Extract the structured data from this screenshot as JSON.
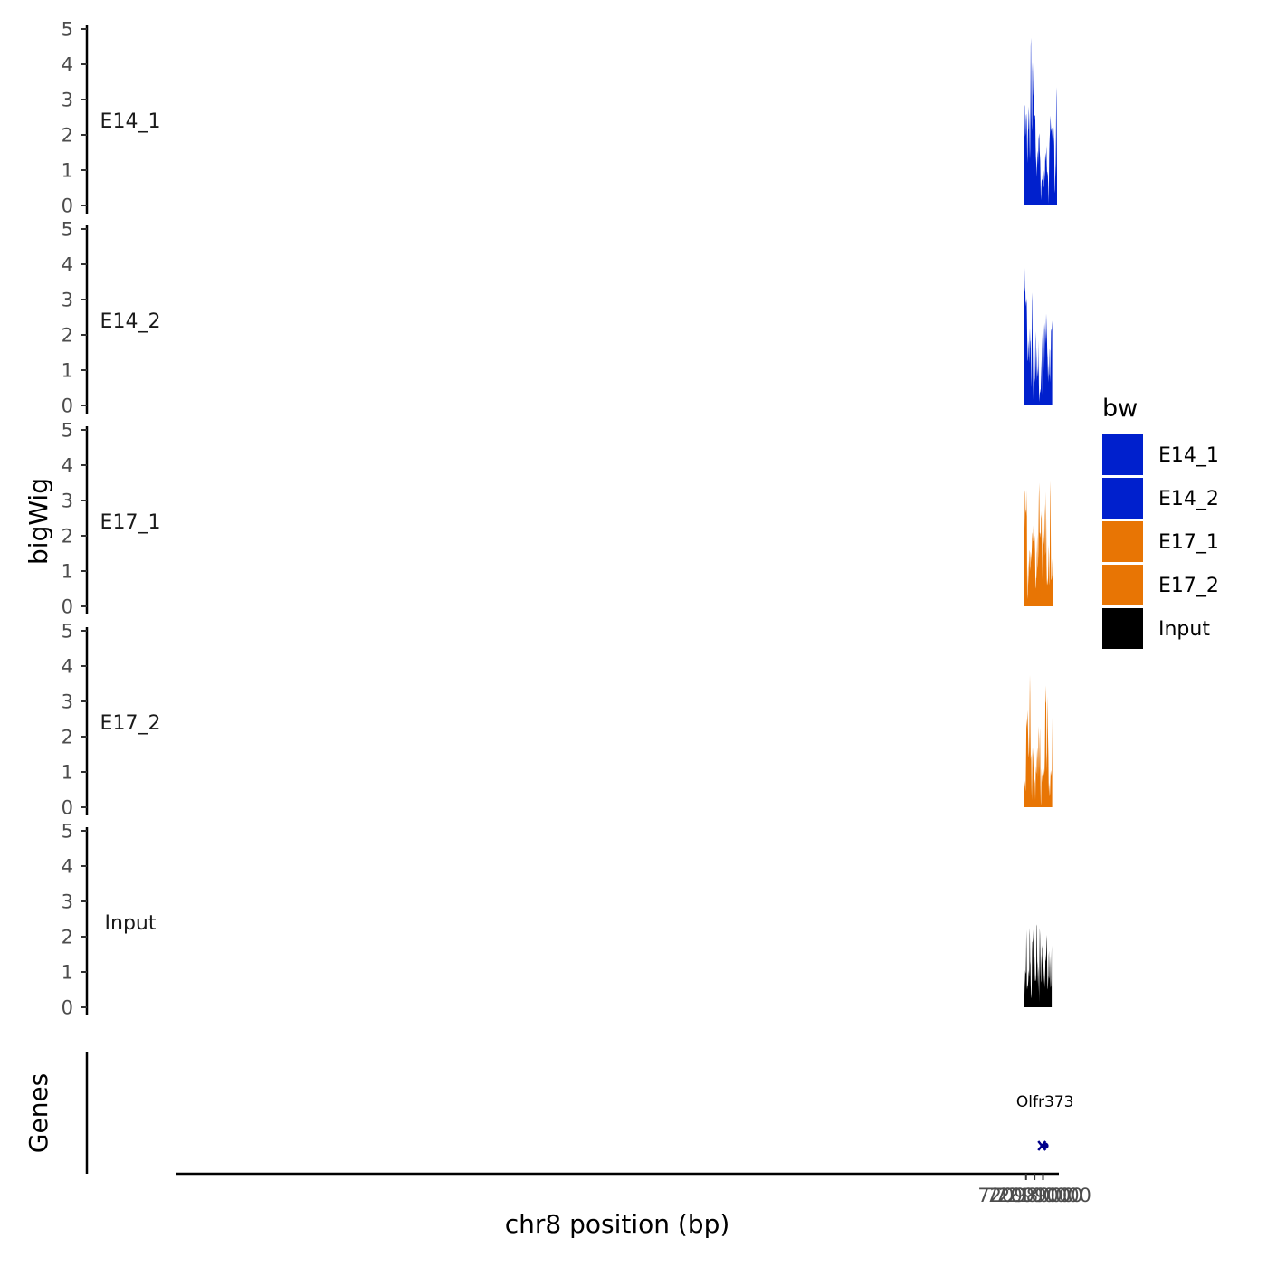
{
  "chart_data": {
    "type": "area",
    "chromosome": "chr8",
    "xlabel": "chr8 position (bp)",
    "ylabel": "bigWig",
    "xlim": [
      71997650,
      72101870
    ],
    "x_ticks": [
      {
        "value": 72098000,
        "label": "72098000"
      },
      {
        "value": 72099000,
        "label": "72099000"
      },
      {
        "value": 72100000,
        "label": "72100000"
      }
    ],
    "ylim": [
      0,
      5
    ],
    "y_ticks": [
      "0",
      "1",
      "2",
      "3",
      "4",
      "5"
    ],
    "legend": {
      "title": "bw",
      "entries": [
        {
          "label": "E14_1",
          "color": "#0020CD"
        },
        {
          "label": "E14_2",
          "color": "#0020CD"
        },
        {
          "label": "E17_1",
          "color": "#E87504"
        },
        {
          "label": "E17_2",
          "color": "#E87504"
        },
        {
          "label": "Input",
          "color": "#000000"
        }
      ]
    },
    "tracks": [
      {
        "name": "E14_1",
        "color": "#0020CD",
        "x_start": 72097780,
        "x_end": 72100700,
        "segments": [
          {
            "start": 72097780,
            "step": 32,
            "values": [
              2.5,
              2.85,
              2.8,
              2.3,
              1.95,
              2.05,
              2.35,
              2.55,
              2.6,
              2.45,
              2.15,
              1.45,
              1.2,
              1.7,
              2.1,
              2.2,
              2.45,
              2.8,
              2.55,
              2.2,
              1.7,
              1.3,
              1.6,
              2.9,
              4.5,
              4.75,
              3.6,
              2.6,
              2.1,
              2.3,
              3.8,
              4.05,
              3.7,
              3.35,
              3.1,
              3.3,
              3.15,
              2.6,
              2.55,
              2.55,
              2.55,
              2.4,
              1.75,
              1.4,
              1.25,
              1.05,
              0.8,
              1.1,
              1.45,
              1.55,
              1.35,
              1.15,
              1.45,
              1.85,
              1.95,
              2.05,
              1.9,
              1.55,
              1.4,
              1.25,
              0.8,
              0.3,
              0.15,
              0.45,
              0.65,
              0.75,
              0.7,
              0.75,
              0.95,
              1.25,
              1.05,
              0.55,
              0.5,
              0.85,
              1.0,
              0.85,
              0.7,
              1.25,
              1.5,
              1.4,
              1.25,
              1.5,
              1.7,
              1.2,
              0.95,
              0.95,
              0.9,
              0.85,
              0.65,
              0.3,
              0.05,
              0.7,
              1.4,
              1.75,
              1.95,
              2.1,
              2.35,
              2.55,
              2.3,
              2.15,
              2.1,
              2.2,
              2.2,
              2.05,
              1.95,
              1.55,
              1.4,
              1.45,
              1.8,
              1.95,
              2.25,
              1.3,
              0.45,
              0.35,
              0.7,
              0.95,
              1.2,
              1.95,
              3.05,
              3.35,
              2.2,
              0.9
            ]
          }
        ]
      },
      {
        "name": "E14_2",
        "color": "#0020CD",
        "x_start": 72097780,
        "x_end": 72100700,
        "segments": [
          {
            "start": 72097780,
            "step": 32,
            "values": [
              3.1,
              3.9,
              3.55,
              3.2,
              3.35,
              3.0,
              2.8,
              2.95,
              2.9,
              3.05,
              2.6,
              2.0,
              1.6,
              1.3,
              1.25,
              1.55,
              1.85,
              1.65,
              1.2,
              1.45,
              1.95,
              2.2,
              1.85,
              1.8,
              1.6,
              0.8,
              0.5,
              1.4,
              2.25,
              3.2,
              2.95,
              1.8,
              0.6,
              0.15,
              1.4,
              2.65,
              1.6,
              0.8,
              0.75,
              0.65,
              1.05,
              1.8,
              2.1,
              1.35,
              1.0,
              0.7,
              1.15,
              1.65,
              1.15,
              0.8,
              1.05,
              0.8,
              1.2,
              1.85,
              0.65,
              0.25,
              0.1,
              0.3,
              0.4,
              0.35,
              0.45,
              0.45,
              0.9,
              1.3,
              0.75,
              0.3,
              0.45,
              0.85,
              1.05,
              1.35,
              2.05,
              2.3,
              2.05,
              1.55,
              1.05,
              0.75,
              1.25,
              1.4,
              1.2,
              1.35,
              1.45,
              1.05,
              1.25,
              1.35,
              1.0,
              0.5,
              0.1
            ]
          },
          {
            "start": 72099860,
            "step": 32,
            "values": [
              1.3,
              2.05,
              1.65,
              0.7,
              0.45,
              0.6,
              0.55,
              0.4,
              0.5,
              1.0,
              1.65,
              2.05,
              2.35,
              2.05,
              1.75,
              2.2,
              2.6,
              2.35,
              2.05,
              1.85,
              1.5,
              1.35,
              1.0,
              0.65,
              0.85,
              1.2,
              0.85,
              0.9,
              1.35,
              1.6,
              1.55,
              0.85,
              0.65,
              1.55,
              2.1,
              2.15,
              2.15,
              2.3,
              2.4
            ]
          }
        ]
      },
      {
        "name": "E17_1",
        "color": "#E87504",
        "x_start": 72097780,
        "x_end": 72100690,
        "segments": [
          {
            "start": 72097780,
            "step": 32,
            "values": [
              2.7,
              2.2,
              2.6,
              3.2,
              3.3,
              2.8,
              2.65,
              2.75,
              2.55,
              3.3,
              2.6,
              0.35,
              0.2,
              0.55,
              1.0,
              1.3,
              0.9,
              0.6,
              1.1,
              1.6,
              1.55,
              1.15,
              1.0,
              1.35,
              1.55,
              1.45,
              1.25,
              1.45,
              1.65,
              1.9,
              2.05,
              2.1,
              1.85,
              1.85,
              2.3,
              1.85,
              1.65,
              1.95,
              2.0,
              1.85,
              1.55,
              0.9,
              0.5,
              0.55,
              0.8,
              0.8,
              1.05,
              1.55,
              2.05,
              1.65,
              0.95,
              0.8,
              1.3,
              1.5,
              1.7,
              1.45,
              1.55,
              1.5,
              0.85,
              0.2,
              0.05
            ]
          },
          {
            "start": 72099160,
            "step": 32,
            "values": [
              0.05,
              0.2,
              0.45,
              1.05,
              1.5,
              1.6,
              1.25,
              1.05,
              1.25,
              1.55,
              2.45,
              3.1,
              3.5,
              3.0,
              2.1,
              2.05,
              2.1,
              2.0,
              1.95,
              1.85,
              1.7,
              0.85,
              0.25
            ]
          },
          {
            "start": 72099650,
            "step": 32,
            "values": [
              0.0,
              0.5,
              1.0,
              2.05,
              2.6,
              2.5,
              2.7,
              1.45,
              0.75,
              1.75,
              2.8,
              3.45,
              3.15,
              2.15,
              1.75,
              1.85,
              2.05,
              2.9,
              2.6,
              1.45,
              1.55,
              2.55,
              3.25,
              2.25,
              1.2,
              0.75,
              0.6,
              0.8,
              0.65,
              0.6,
              1.0,
              1.3,
              1.75,
              1.45,
              0.7,
              0.6,
              1.6,
              3.1,
              3.55,
              2.6,
              1.35,
              0.75,
              0.75,
              0.8,
              0.9,
              1.2,
              1.35,
              1.25,
              1.05
            ]
          }
        ]
      },
      {
        "name": "E17_2",
        "color": "#E87504",
        "x_start": 72097780,
        "x_end": 72100690,
        "segments": [
          {
            "start": 72097780,
            "step": 32,
            "values": [
              1.0,
              0.6,
              0.75,
              0.65,
              0.55,
              0.45,
              0.8,
              1.5,
              2.3,
              2.5,
              2.25,
              2.5,
              2.75,
              2.5,
              2.2,
              1.85,
              1.55,
              1.4,
              1.6,
              2.1,
              3.0,
              3.75,
              3.2,
              2.1,
              1.35,
              1.5,
              1.3,
              0.55,
              0.2,
              0.8,
              1.45,
              1.7,
              1.55,
              1.45,
              1.2,
              0.9,
              0.6,
              0.65,
              0.7,
              0.8,
              0.5,
              0.2,
              0.7,
              1.2,
              1.0,
              0.95,
              1.15,
              1.4,
              1.0,
              0.6,
              0.55,
              0.85,
              1.3,
              2.0,
              2.3,
              1.55,
              0.6,
              0.05
            ]
          },
          {
            "start": 72099190,
            "step": 32,
            "values": [
              0.05,
              0.45,
              1.05,
              1.45,
              1.7,
              1.55,
              1.35,
              0.75,
              0.6,
              0.9,
              0.65,
              1.05,
              1.15,
              1.9,
              2.25,
              1.55,
              0.6,
              0.15,
              0.05,
              0.7,
              1.1,
              0.9,
              0.7,
              0.9,
              0.95,
              0.8,
              0.85,
              0.95,
              0.9,
              1.1,
              0.95,
              1.05,
              1.4,
              2.15,
              3.05,
              3.45,
              3.0,
              2.95,
              1.55,
              1.35,
              1.0,
              2.6,
              3.15,
              2.3,
              1.85,
              1.45,
              0.7,
              0.45,
              0.7,
              0.45,
              0.3,
              0.4,
              0.7,
              0.95,
              1.05,
              0.95,
              0.9,
              1.05,
              1.85,
              2.55
            ]
          }
        ]
      },
      {
        "name": "Input",
        "color": "#000000",
        "x_start": 72097780,
        "x_end": 72100690,
        "segments": [
          {
            "start": 72097780,
            "step": 32,
            "values": [
              0.0,
              0.35,
              0.65,
              0.8,
              1.05,
              0.95,
              1.0,
              1.45,
              2.2,
              1.65,
              0.6,
              0.5,
              0.6,
              0.6,
              0.65,
              0.75,
              0.95,
              1.05,
              0.85,
              1.1,
              2.25,
              2.05,
              1.3,
              1.2,
              0.65,
              0.4,
              0.3,
              0.25,
              0.8,
              1.55,
              1.85,
              1.85,
              1.95,
              2.2,
              1.4,
              0.55,
              0.9,
              1.45,
              1.4,
              0.95,
              0.75,
              0.75,
              0.75,
              0.8,
              0.95,
              1.6,
              2.35,
              2.3,
              1.3,
              1.2,
              0.75,
              0.65,
              0.4,
              0.1,
              0.0,
              0.2,
              0.15,
              0.05
            ]
          },
          {
            "start": 72099150,
            "step": 32,
            "values": [
              0.0,
              0.55,
              0.95,
              1.2,
              1.25,
              1.15,
              0.85,
              0.6,
              0.95,
              1.15,
              0.85,
              0.6,
              0.35,
              0.05
            ]
          },
          {
            "start": 72099520,
            "step": 32,
            "values": [
              0.0,
              0.55,
              1.45,
              2.25,
              2.05,
              1.55,
              1.05,
              0.75,
              0.7,
              1.25,
              1.5,
              1.2,
              1.75,
              1.65,
              2.1,
              2.55,
              1.6,
              0.95,
              0.65,
              0.85,
              1.15,
              0.75,
              0.55,
              0.9,
              1.5,
              1.3,
              1.35,
              1.65,
              2.05,
              1.85,
              1.35,
              0.75,
              0.5,
              0.55,
              0.8,
              0.9,
              1.45,
              1.6,
              0.8,
              0.85,
              1.45,
              1.2,
              0.75,
              0.55,
              0.6,
              0.8,
              1.35,
              1.75
            ]
          }
        ]
      }
    ],
    "genes": {
      "title": "Genes",
      "items": [
        {
          "name": "Olfr373",
          "start": 72099760,
          "end": 72100710,
          "color": "#00008B"
        }
      ]
    }
  }
}
